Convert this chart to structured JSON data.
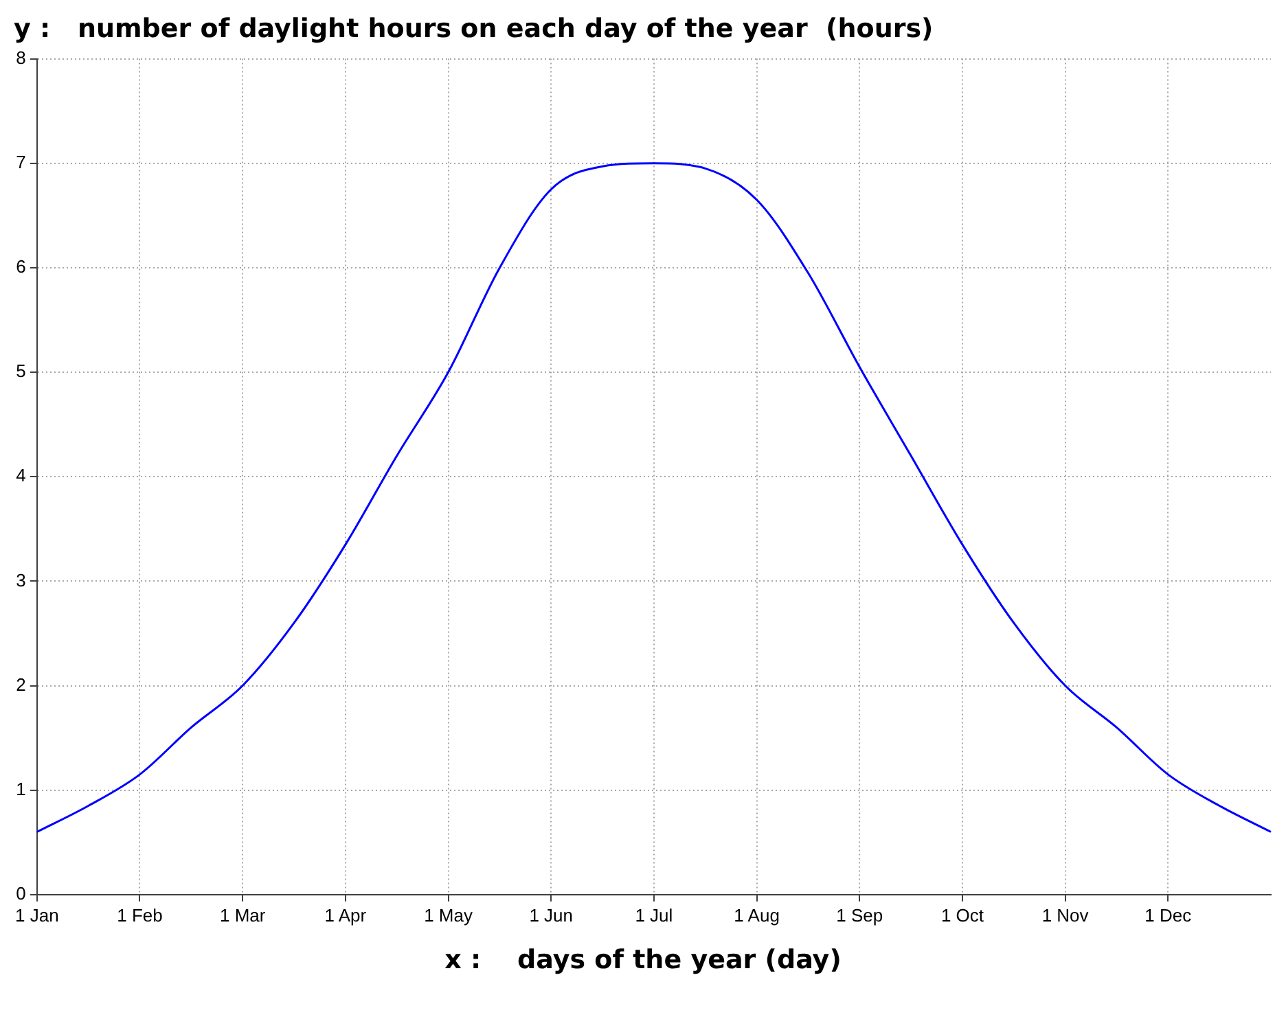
{
  "chart_data": {
    "type": "line",
    "ylabel": "y :   number of daylight hours on each day of the year  (hours)",
    "xlabel": "x :    days of the year (day)",
    "categories": [
      "1 Jan",
      null,
      "1 Feb",
      null,
      "1 Mar",
      null,
      "1 Apr",
      null,
      "1 May",
      null,
      "1 Jun",
      null,
      "1 Jul",
      null,
      "1 Aug",
      null,
      "1 Sep",
      null,
      "1 Oct",
      null,
      "1 Nov",
      null,
      "1 Dec",
      null,
      null
    ],
    "series": [
      {
        "color": "#0000ff",
        "values": [
          0.6,
          0.85,
          1.15,
          1.6,
          2.0,
          2.6,
          3.35,
          4.2,
          5.0,
          6.0,
          6.75,
          6.97,
          7.0,
          6.95,
          6.65,
          5.95,
          5.05,
          4.2,
          3.35,
          2.6,
          2.0,
          1.6,
          1.15,
          0.85,
          0.6
        ]
      }
    ],
    "ylim": [
      0,
      8
    ],
    "yticks": [
      0,
      1,
      2,
      3,
      4,
      5,
      6,
      7,
      8
    ],
    "grid": true,
    "legend": false,
    "marker": "none",
    "line_style": "solid"
  }
}
